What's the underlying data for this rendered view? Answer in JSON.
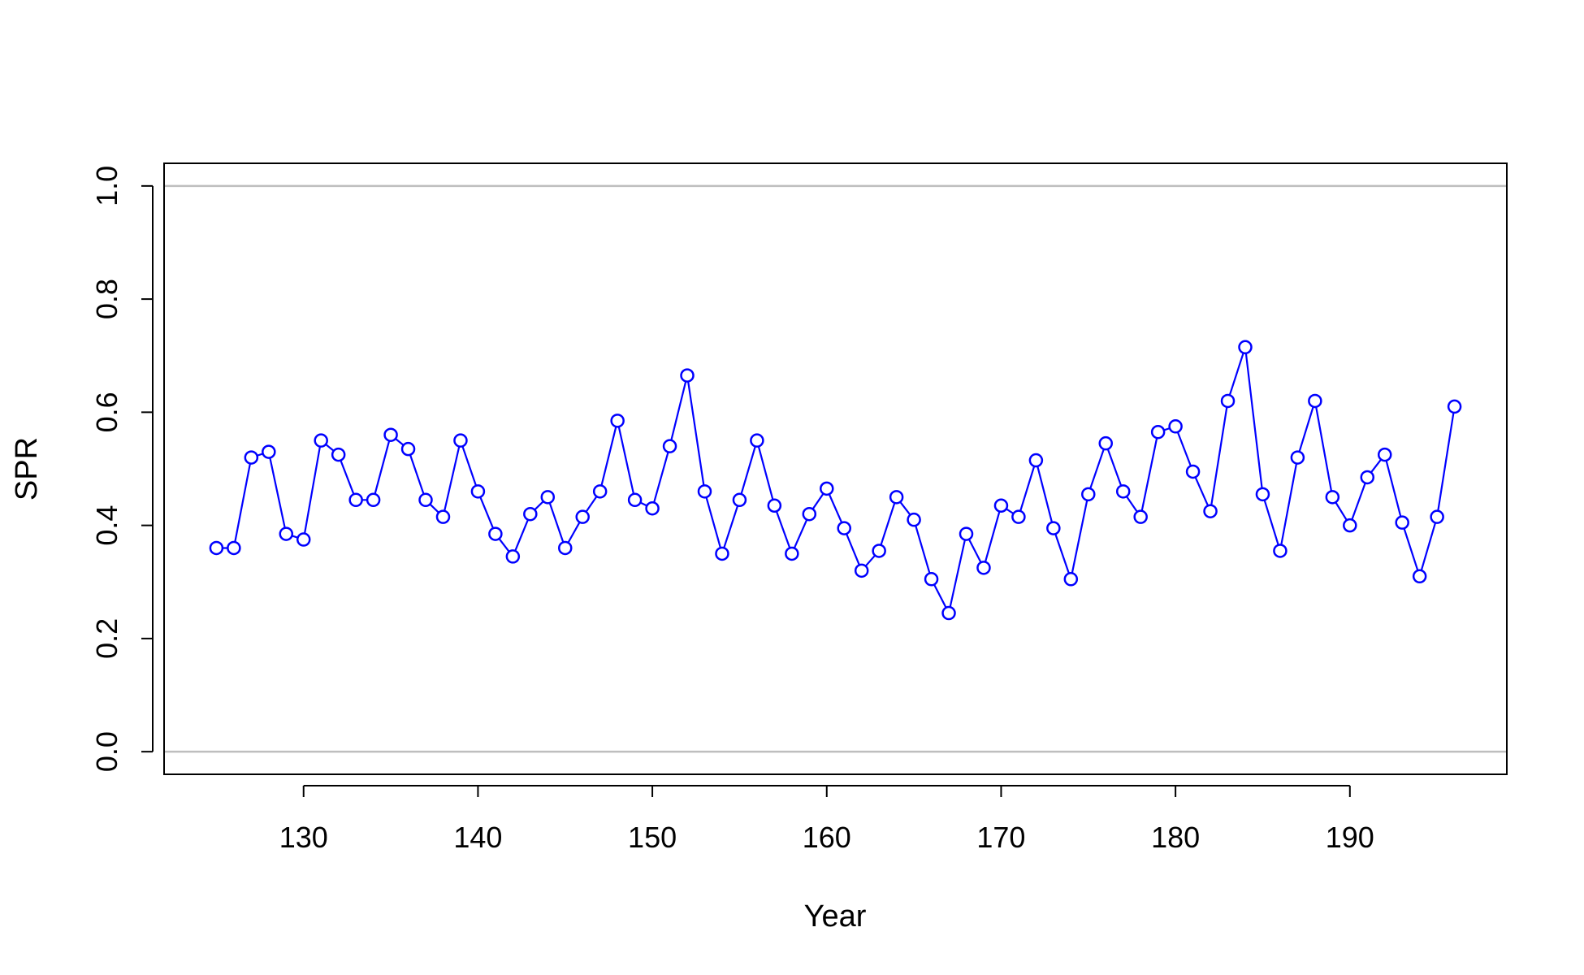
{
  "chart_data": {
    "type": "line",
    "title": "",
    "xlabel": "Year",
    "ylabel": "SPR",
    "xlim": [
      122,
      199
    ],
    "ylim": [
      -0.04,
      1.04
    ],
    "x_ticks": [
      130,
      140,
      150,
      160,
      170,
      180,
      190
    ],
    "x_tick_labels": [
      "130",
      "140",
      "150",
      "160",
      "170",
      "180",
      "190"
    ],
    "y_ticks": [
      0.0,
      0.2,
      0.4,
      0.6,
      0.8,
      1.0
    ],
    "y_tick_labels": [
      "0.0",
      "0.2",
      "0.4",
      "0.6",
      "0.8",
      "1.0"
    ],
    "reference_lines": [
      0.0,
      1.0
    ],
    "colors": {
      "series": "#0000ff",
      "reference": "#bebebe",
      "axis": "#000000"
    },
    "grid": false,
    "series": [
      {
        "marker": "open-circle",
        "x": [
          125,
          126,
          127,
          128,
          129,
          130,
          131,
          132,
          133,
          134,
          135,
          136,
          137,
          138,
          139,
          140,
          141,
          142,
          143,
          144,
          145,
          146,
          147,
          148,
          149,
          150,
          151,
          152,
          153,
          154,
          155,
          156,
          157,
          158,
          159,
          160,
          161,
          162,
          163,
          164,
          165,
          166,
          167,
          168,
          169,
          170,
          171,
          172,
          173,
          174,
          175,
          176,
          177,
          178,
          179,
          180,
          181,
          182,
          183,
          184,
          185,
          186,
          187,
          188,
          189,
          190,
          191,
          192,
          193,
          194,
          195,
          196
        ],
        "y": [
          0.36,
          0.36,
          0.52,
          0.53,
          0.385,
          0.375,
          0.55,
          0.525,
          0.445,
          0.445,
          0.56,
          0.535,
          0.445,
          0.415,
          0.55,
          0.46,
          0.385,
          0.345,
          0.42,
          0.45,
          0.36,
          0.415,
          0.46,
          0.585,
          0.445,
          0.43,
          0.54,
          0.665,
          0.46,
          0.35,
          0.445,
          0.55,
          0.435,
          0.35,
          0.42,
          0.465,
          0.395,
          0.32,
          0.355,
          0.45,
          0.41,
          0.305,
          0.245,
          0.385,
          0.325,
          0.435,
          0.415,
          0.515,
          0.395,
          0.305,
          0.455,
          0.545,
          0.46,
          0.415,
          0.565,
          0.575,
          0.495,
          0.425,
          0.62,
          0.715,
          0.455,
          0.355,
          0.52,
          0.62,
          0.45,
          0.4,
          0.485,
          0.525,
          0.405,
          0.31,
          0.415,
          0.61
        ]
      }
    ]
  }
}
